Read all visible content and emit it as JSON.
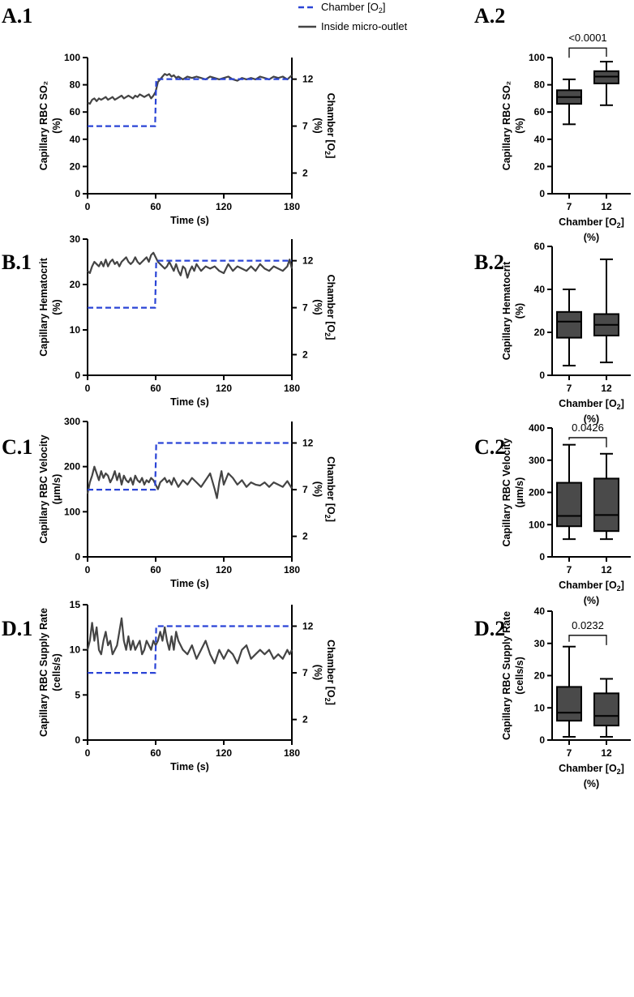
{
  "figure": {
    "legend": {
      "chamber_label": "Chamber [O",
      "chamber_sub": "2",
      "chamber_close": "]",
      "inside_label": "Inside micro-outlet",
      "chamber_color": "#2a44d6",
      "trace_color": "#444444",
      "box_fill": "#4a4a4a"
    }
  },
  "chart_data": [
    {
      "id": "A1",
      "label": "A.1",
      "type": "line",
      "xlabel": "Time (s)",
      "ylabel": [
        "Capillary RBC SO₂",
        "(%)"
      ],
      "y2label": "Chamber [O",
      "y2label_sub": "2",
      "y2label_tail": "]",
      "y2label_unit": "(%)",
      "xlim": [
        0,
        180
      ],
      "ylim": [
        0,
        100
      ],
      "xticks": [
        0,
        60,
        120,
        180
      ],
      "yticks": [
        0,
        20,
        40,
        60,
        80,
        100
      ],
      "y2ticks": [
        2,
        7,
        12
      ],
      "y2lim": [
        -0.2,
        14.3
      ],
      "series": [
        {
          "name": "Inside micro-outlet",
          "x": [
            0,
            2,
            4,
            6,
            8,
            10,
            12,
            14,
            16,
            18,
            20,
            22,
            24,
            26,
            28,
            30,
            32,
            34,
            36,
            38,
            40,
            42,
            44,
            46,
            48,
            50,
            52,
            54,
            56,
            58,
            60,
            62,
            64,
            66,
            68,
            70,
            72,
            74,
            76,
            78,
            80,
            84,
            88,
            92,
            96,
            100,
            104,
            108,
            112,
            116,
            120,
            124,
            128,
            132,
            136,
            140,
            144,
            148,
            152,
            156,
            160,
            164,
            168,
            172,
            176,
            180
          ],
          "values": [
            67,
            66,
            69,
            70,
            68,
            70,
            69,
            70,
            71,
            69,
            70,
            71,
            69,
            70,
            71,
            72,
            70,
            71,
            72,
            71,
            70,
            72,
            71,
            73,
            72,
            71,
            72,
            73,
            70,
            72,
            75,
            82,
            84,
            86,
            88,
            87,
            88,
            86,
            87,
            85,
            86,
            84,
            86,
            85,
            86,
            85,
            84,
            86,
            85,
            84,
            85,
            86,
            84,
            83,
            85,
            84,
            85,
            84,
            86,
            85,
            84,
            86,
            85,
            86,
            84,
            87
          ]
        },
        {
          "name": "Chamber [O2]",
          "axis": "right",
          "x": [
            0,
            59.5,
            60.5,
            180
          ],
          "values": [
            7,
            7,
            12,
            12
          ]
        }
      ]
    },
    {
      "id": "A2",
      "label": "A.2",
      "type": "box",
      "categories": [
        "7",
        "12"
      ],
      "xlabel": "Chamber [O",
      "xlabel_sub": "2",
      "xlabel_tail": "]",
      "xlabel_unit": "(%)",
      "ylabel": [
        "Capillary RBC SO₂",
        "(%)"
      ],
      "ylim": [
        0,
        100
      ],
      "yticks": [
        0,
        20,
        40,
        60,
        80,
        100
      ],
      "boxes": [
        {
          "min": 51,
          "q1": 66,
          "median": 71,
          "q3": 76,
          "max": 84
        },
        {
          "min": 65,
          "q1": 81,
          "median": 86,
          "q3": 90,
          "max": 97
        }
      ],
      "pvalue": "<0.0001",
      "bracket_y": 107
    },
    {
      "id": "B1",
      "label": "B.1",
      "type": "line",
      "xlabel": "Time (s)",
      "ylabel": [
        "Capillary Hematocrit",
        "(%)"
      ],
      "y2label": "Chamber [O",
      "y2label_sub": "2",
      "y2label_tail": "]",
      "y2label_unit": "(%)",
      "xlim": [
        0,
        180
      ],
      "ylim": [
        0,
        30
      ],
      "xticks": [
        0,
        60,
        120,
        180
      ],
      "yticks": [
        0,
        10,
        20,
        30
      ],
      "y2ticks": [
        2,
        7,
        12
      ],
      "y2lim": [
        -0.2,
        14.3
      ],
      "series": [
        {
          "name": "Inside micro-outlet",
          "x": [
            0,
            2,
            4,
            6,
            8,
            10,
            12,
            14,
            16,
            18,
            20,
            22,
            24,
            26,
            28,
            30,
            32,
            34,
            36,
            38,
            40,
            42,
            44,
            46,
            48,
            50,
            52,
            54,
            56,
            58,
            60,
            62,
            64,
            66,
            68,
            70,
            72,
            74,
            76,
            78,
            80,
            82,
            84,
            86,
            88,
            90,
            92,
            94,
            96,
            100,
            104,
            108,
            112,
            116,
            120,
            124,
            128,
            132,
            136,
            140,
            144,
            148,
            152,
            156,
            160,
            164,
            168,
            172,
            176,
            178,
            180
          ],
          "values": [
            23,
            22.5,
            24,
            25,
            24.5,
            24,
            25,
            24,
            25.5,
            24,
            25,
            25.5,
            24.5,
            25,
            24,
            25,
            25.5,
            26,
            25,
            24.5,
            25,
            26,
            25,
            24.5,
            25,
            25.5,
            26,
            25,
            26.5,
            27,
            26,
            25,
            24.5,
            24,
            23.5,
            24,
            25,
            24,
            23,
            24.5,
            23,
            22,
            24,
            23.5,
            21.5,
            23,
            24,
            23,
            24.5,
            23,
            24,
            23.5,
            24,
            23,
            22.5,
            24.5,
            23,
            24,
            23.5,
            23,
            24,
            23,
            24.5,
            23.5,
            23,
            24,
            23.5,
            23,
            24,
            25.5,
            23.5
          ]
        },
        {
          "name": "Chamber [O2]",
          "axis": "right",
          "x": [
            0,
            59.5,
            60.5,
            180
          ],
          "values": [
            7,
            7,
            12,
            12
          ]
        }
      ]
    },
    {
      "id": "B2",
      "label": "B.2",
      "type": "box",
      "categories": [
        "7",
        "12"
      ],
      "xlabel": "Chamber [O",
      "xlabel_sub": "2",
      "xlabel_tail": "]",
      "xlabel_unit": "(%)",
      "ylabel": [
        "Capillary Hematocrit",
        "(%)"
      ],
      "ylim": [
        0,
        60
      ],
      "yticks": [
        0,
        20,
        40,
        60
      ],
      "boxes": [
        {
          "min": 4.5,
          "q1": 17.5,
          "median": 25,
          "q3": 29.5,
          "max": 40
        },
        {
          "min": 6,
          "q1": 18.5,
          "median": 23.5,
          "q3": 28.5,
          "max": 54
        }
      ],
      "pvalue": null
    },
    {
      "id": "C1",
      "label": "C.1",
      "type": "line",
      "xlabel": "Time (s)",
      "ylabel": [
        "Capillary RBC Velocity",
        "(μm/s)"
      ],
      "y2label": "Chamber [O",
      "y2label_sub": "2",
      "y2label_tail": "]",
      "y2label_unit": "(%)",
      "xlim": [
        0,
        180
      ],
      "ylim": [
        0,
        300
      ],
      "xticks": [
        0,
        60,
        120,
        180
      ],
      "yticks": [
        0,
        100,
        200,
        300
      ],
      "y2ticks": [
        2,
        7,
        12
      ],
      "y2lim": [
        -0.2,
        14.3
      ],
      "series": [
        {
          "name": "Inside micro-outlet",
          "x": [
            0,
            2,
            4,
            6,
            8,
            10,
            12,
            14,
            16,
            18,
            20,
            22,
            24,
            26,
            28,
            30,
            32,
            34,
            36,
            38,
            40,
            42,
            44,
            46,
            48,
            50,
            52,
            54,
            56,
            58,
            60,
            62,
            64,
            66,
            68,
            70,
            72,
            74,
            76,
            78,
            80,
            84,
            88,
            92,
            96,
            100,
            104,
            108,
            112,
            114,
            116,
            118,
            120,
            124,
            128,
            132,
            136,
            140,
            144,
            148,
            152,
            156,
            160,
            164,
            168,
            172,
            176,
            180
          ],
          "values": [
            140,
            165,
            180,
            200,
            185,
            170,
            190,
            175,
            185,
            180,
            165,
            175,
            190,
            170,
            185,
            160,
            180,
            170,
            165,
            175,
            160,
            180,
            170,
            165,
            175,
            160,
            170,
            165,
            175,
            170,
            160,
            150,
            165,
            170,
            175,
            165,
            170,
            160,
            175,
            165,
            155,
            170,
            160,
            175,
            165,
            155,
            170,
            185,
            150,
            130,
            165,
            190,
            160,
            185,
            175,
            160,
            170,
            155,
            165,
            160,
            158,
            165,
            155,
            165,
            160,
            155,
            168,
            152
          ]
        },
        {
          "name": "Chamber [O2]",
          "axis": "right",
          "x": [
            0,
            59.5,
            60.5,
            180
          ],
          "values": [
            7,
            7,
            12,
            12
          ]
        }
      ]
    },
    {
      "id": "C2",
      "label": "C.2",
      "type": "box",
      "categories": [
        "7",
        "12"
      ],
      "xlabel": "Chamber [O",
      "xlabel_sub": "2",
      "xlabel_tail": "]",
      "xlabel_unit": "(%)",
      "ylabel": [
        "Capillary RBC Velocity",
        "(μm/s)"
      ],
      "ylim": [
        0,
        400
      ],
      "yticks": [
        0,
        100,
        200,
        300,
        400
      ],
      "boxes": [
        {
          "min": 55,
          "q1": 95,
          "median": 127,
          "q3": 230,
          "max": 348
        },
        {
          "min": 55,
          "q1": 80,
          "median": 130,
          "q3": 243,
          "max": 320
        }
      ],
      "pvalue": "0.0426",
      "bracket_y": 370
    },
    {
      "id": "D1",
      "label": "D.1",
      "type": "line",
      "xlabel": "Time (s)",
      "ylabel": [
        "Capillary RBC Supply Rate",
        "(cells/s)"
      ],
      "y2label": "Chamber [O",
      "y2label_sub": "2",
      "y2label_tail": "]",
      "y2label_unit": "(%)",
      "xlim": [
        0,
        180
      ],
      "ylim": [
        0,
        15
      ],
      "xticks": [
        0,
        60,
        120,
        180
      ],
      "yticks": [
        0,
        5,
        10,
        15
      ],
      "y2ticks": [
        2,
        7,
        12
      ],
      "y2lim": [
        -0.2,
        14.3
      ],
      "series": [
        {
          "name": "Inside micro-outlet",
          "x": [
            0,
            2,
            4,
            6,
            8,
            10,
            12,
            14,
            16,
            18,
            20,
            22,
            24,
            26,
            28,
            30,
            32,
            34,
            36,
            38,
            40,
            42,
            44,
            46,
            48,
            50,
            52,
            54,
            56,
            58,
            60,
            62,
            64,
            66,
            68,
            70,
            72,
            74,
            76,
            78,
            80,
            84,
            88,
            92,
            96,
            100,
            104,
            108,
            112,
            116,
            120,
            124,
            128,
            132,
            136,
            140,
            144,
            148,
            152,
            156,
            160,
            164,
            168,
            172,
            176,
            178,
            180
          ],
          "values": [
            10,
            11,
            13,
            11,
            12.5,
            10,
            9.5,
            11,
            12,
            10.5,
            11,
            9.5,
            10,
            10.5,
            12,
            13.5,
            11,
            10,
            11.5,
            10,
            11,
            10,
            10.5,
            11,
            9.5,
            10,
            11,
            10.5,
            10,
            11,
            10.5,
            11,
            12,
            11,
            12.5,
            11,
            10,
            11.5,
            10,
            12,
            11,
            10,
            9.5,
            10.5,
            9,
            10,
            11,
            9.5,
            8.5,
            10,
            9,
            10,
            9.5,
            8.5,
            10,
            10.5,
            9,
            9.5,
            10,
            9.5,
            10,
            9,
            9.5,
            9,
            10,
            9.5,
            10
          ]
        },
        {
          "name": "Chamber [O2]",
          "axis": "right",
          "x": [
            0,
            59.5,
            60.5,
            180
          ],
          "values": [
            7,
            7,
            12,
            12
          ]
        }
      ]
    },
    {
      "id": "D2",
      "label": "D.2",
      "type": "box",
      "categories": [
        "7",
        "12"
      ],
      "xlabel": "Chamber [O",
      "xlabel_sub": "2",
      "xlabel_tail": "]",
      "xlabel_unit": "(%)",
      "ylabel": [
        "Capillary RBC Supply Rate",
        "(cells/s)"
      ],
      "ylim": [
        0,
        40
      ],
      "yticks": [
        0,
        10,
        20,
        30,
        40
      ],
      "boxes": [
        {
          "min": 1,
          "q1": 6,
          "median": 8.5,
          "q3": 16.5,
          "max": 29
        },
        {
          "min": 1,
          "q1": 4.5,
          "median": 7.5,
          "q3": 14.5,
          "max": 19
        }
      ],
      "pvalue": "0.0232",
      "bracket_y": 32.5
    }
  ]
}
